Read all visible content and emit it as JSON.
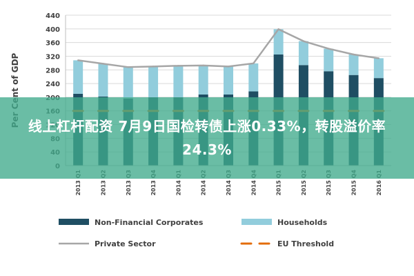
{
  "chart_data": {
    "type": "bar",
    "title": "",
    "xlabel": "",
    "ylabel": "Per Cent of GDP",
    "ylim": [
      0,
      440
    ],
    "yticks": [
      0,
      40,
      80,
      120,
      160,
      200,
      240,
      280,
      320,
      360,
      400,
      440
    ],
    "categories": [
      "2013 Q1",
      "2013 Q2",
      "2013 Q3",
      "2013 Q4",
      "2014 Q1",
      "2014 Q2",
      "2014 Q3",
      "2014 Q4",
      "2015 Q1",
      "2015 Q2",
      "2015 Q3",
      "2015 Q4",
      "2016 Q1"
    ],
    "stacked": true,
    "grid": true,
    "legend_position": "bottom",
    "series": [
      {
        "name": "Non-Financial Corporates",
        "kind": "bar",
        "color": "#1f4e63",
        "values": [
          210,
          202,
          196,
          200,
          200,
          208,
          208,
          217,
          325,
          294,
          276,
          265,
          256
        ]
      },
      {
        "name": "Households",
        "kind": "bar",
        "color": "#92cddc",
        "values": [
          98,
          96,
          92,
          90,
          92,
          85,
          82,
          82,
          74,
          70,
          66,
          60,
          58
        ]
      },
      {
        "name": "Private Sector",
        "kind": "line",
        "color": "#a6a6a6",
        "values": [
          308,
          298,
          288,
          290,
          292,
          293,
          290,
          299,
          399,
          364,
          342,
          325,
          314
        ]
      },
      {
        "name": "EU Threshold",
        "kind": "line",
        "style": "dashed",
        "color": "#e36c0a",
        "values": [
          160,
          160,
          160,
          160,
          160,
          160,
          160,
          160,
          160,
          160,
          160,
          160,
          160
        ]
      }
    ]
  },
  "overlay": {
    "text": "线上杠杆配资 7月9日国检转债上涨0.33%，转股溢价率24.3%"
  }
}
